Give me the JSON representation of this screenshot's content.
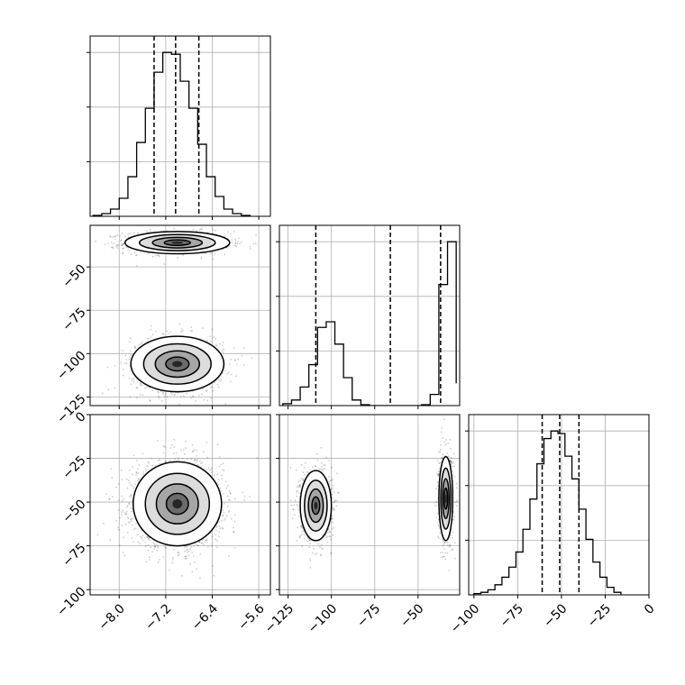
{
  "chart_data": {
    "type": "corner",
    "grid": true,
    "variables": [
      {
        "range": [
          -8.5,
          -5.4
        ],
        "ticks": [
          -8.0,
          -7.2,
          -6.4,
          -5.6
        ],
        "tick_labels": [
          "−8.0",
          "−7.2",
          "−6.4",
          "−5.6"
        ]
      },
      {
        "range": [
          -130,
          -26
        ],
        "ticks": [
          -125,
          -100,
          -75,
          -50
        ],
        "tick_labels": [
          "−125",
          "−100",
          "−75",
          "−50"
        ]
      },
      {
        "range": [
          -103,
          0
        ],
        "ticks": [
          -100,
          -75,
          -50,
          -25,
          0
        ],
        "tick_labels": [
          "−100",
          "−75",
          "−50",
          "−25",
          "0"
        ]
      }
    ],
    "histograms": [
      {
        "var": 0,
        "bin_edges": [
          -8.45,
          -8.3,
          -8.15,
          -8.0,
          -7.85,
          -7.7,
          -7.55,
          -7.4,
          -7.25,
          -7.1,
          -6.95,
          -6.8,
          -6.65,
          -6.5,
          -6.35,
          -6.2,
          -6.05,
          -5.9,
          -5.75
        ],
        "counts": [
          0.5,
          1.5,
          4,
          10,
          22,
          41,
          60,
          80,
          91,
          90,
          75,
          60,
          40,
          22,
          11,
          4,
          1.5,
          0.5
        ],
        "quantiles": [
          -7.4,
          -7.03,
          -6.63
        ]
      },
      {
        "var": 1,
        "bin_edges": [
          -128,
          -123,
          -118,
          -113,
          -108,
          -103,
          -98,
          -93,
          -88,
          -83,
          -78,
          -73,
          -68,
          -63,
          -58,
          -53,
          -48,
          -43,
          -38,
          -33,
          -28
        ],
        "counts": [
          1,
          3,
          10,
          22,
          42,
          45,
          33,
          15,
          3,
          0.5,
          0,
          0,
          0,
          0,
          0,
          0,
          0.5,
          6,
          65,
          88,
          12
        ],
        "quantiles": [
          -109,
          -66,
          -37
        ]
      },
      {
        "var": 2,
        "bin_edges": [
          -100,
          -96,
          -92,
          -88,
          -84,
          -80,
          -76,
          -72,
          -68,
          -64,
          -60,
          -56,
          -52,
          -48,
          -44,
          -40,
          -36,
          -32,
          -28,
          -24,
          -20,
          -16
        ],
        "counts": [
          0.5,
          1,
          2,
          4,
          7,
          11,
          17,
          26,
          38,
          52,
          62,
          65,
          64,
          55,
          46,
          34,
          22,
          13,
          7,
          3,
          1
        ],
        "quantiles": [
          -61,
          -51,
          -40
        ]
      }
    ],
    "scatter_panels": [
      {
        "x_var": 0,
        "y_var": 1,
        "clusters": [
          {
            "mean": [
              -7.0,
              -36
            ],
            "sd": [
              0.45,
              3.2
            ],
            "n": 1100
          },
          {
            "mean": [
              -7.0,
              -106
            ],
            "sd": [
              0.4,
              8
            ],
            "n": 1100
          }
        ]
      },
      {
        "x_var": 0,
        "y_var": 2,
        "clusters": [
          {
            "mean": [
              -7.0,
              -51
            ],
            "sd": [
              0.38,
              12
            ],
            "n": 2200
          }
        ]
      },
      {
        "x_var": 1,
        "y_var": 2,
        "clusters": [
          {
            "mean": [
              -109,
              -52
            ],
            "sd": [
              4.5,
              10
            ],
            "n": 1100
          },
          {
            "mean": [
              -34,
              -48
            ],
            "sd": [
              2,
              12
            ],
            "n": 1100
          }
        ]
      }
    ]
  }
}
